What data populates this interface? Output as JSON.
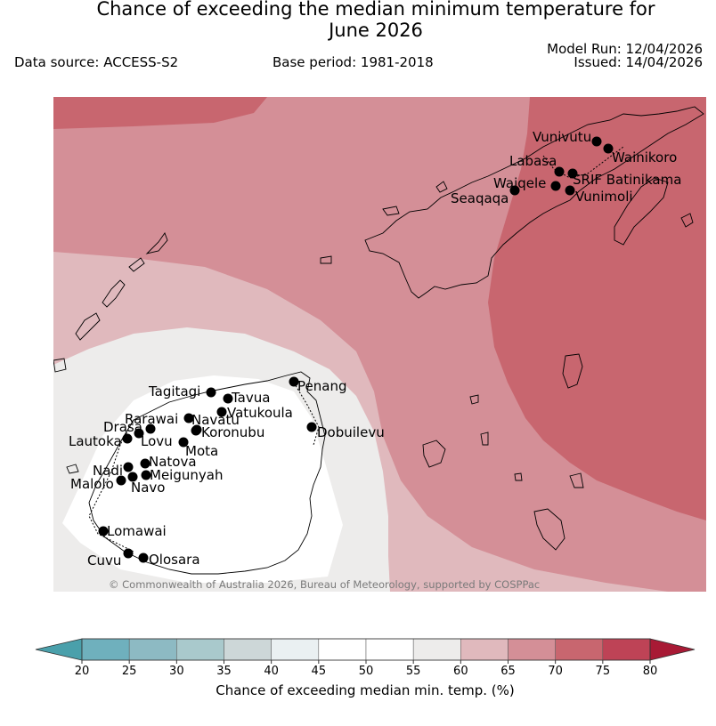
{
  "header": {
    "title_line1": "Chance of exceeding the median minimum temperature for",
    "title_line2": "June 2026",
    "data_source": "Data source: ACCESS-S2",
    "base_period": "Base period: 1981-2018",
    "model_run": "Model Run: 12/04/2026",
    "issued": "Issued: 14/04/2026"
  },
  "map": {
    "copyright": "© Commonwealth of Australia 2026, Bureau of Meteorology, supported by COSPPac",
    "colors": {
      "band_55_60": "#edeceb",
      "band_60_65": "#e0b9bd",
      "band_65_70": "#d48f97",
      "band_70_75": "#c8666f"
    },
    "stations": [
      {
        "name": "Vunivutu"
      },
      {
        "name": "Wainikoro"
      },
      {
        "name": "Labasa"
      },
      {
        "name": "SRIF Batinikama"
      },
      {
        "name": "Waiqele"
      },
      {
        "name": "Seaqaqa"
      },
      {
        "name": "Vunimoli"
      },
      {
        "name": "Penang"
      },
      {
        "name": "Tagitagi"
      },
      {
        "name": "Tavua"
      },
      {
        "name": "Vatukoula"
      },
      {
        "name": "Rarawai"
      },
      {
        "name": "Navatu"
      },
      {
        "name": "Drasa"
      },
      {
        "name": "Koronubu"
      },
      {
        "name": "Lautoka"
      },
      {
        "name": "Lovu"
      },
      {
        "name": "Mota"
      },
      {
        "name": "Dobuilevu"
      },
      {
        "name": "Natova"
      },
      {
        "name": "Nadi"
      },
      {
        "name": "Meigunyah"
      },
      {
        "name": "Malolo"
      },
      {
        "name": "Navo"
      },
      {
        "name": "Lomawai"
      },
      {
        "name": "Cuvu"
      },
      {
        "name": "Olosara"
      }
    ]
  },
  "colorbar": {
    "label": "Chance of exceeding median min. temp. (%)",
    "ticks": [
      "20",
      "25",
      "30",
      "35",
      "40",
      "45",
      "50",
      "55",
      "60",
      "65",
      "70",
      "75",
      "80"
    ],
    "colors": [
      "#6fb0bd",
      "#8dbac3",
      "#a9c9cc",
      "#cdd7d8",
      "#eaf0f2",
      "#ffffff",
      "#ffffff",
      "#edeceb",
      "#e0b9bd",
      "#d48f97",
      "#c8666f",
      "#be4356"
    ],
    "low_color": "#4aa0ab",
    "high_color": "#a81a35"
  }
}
